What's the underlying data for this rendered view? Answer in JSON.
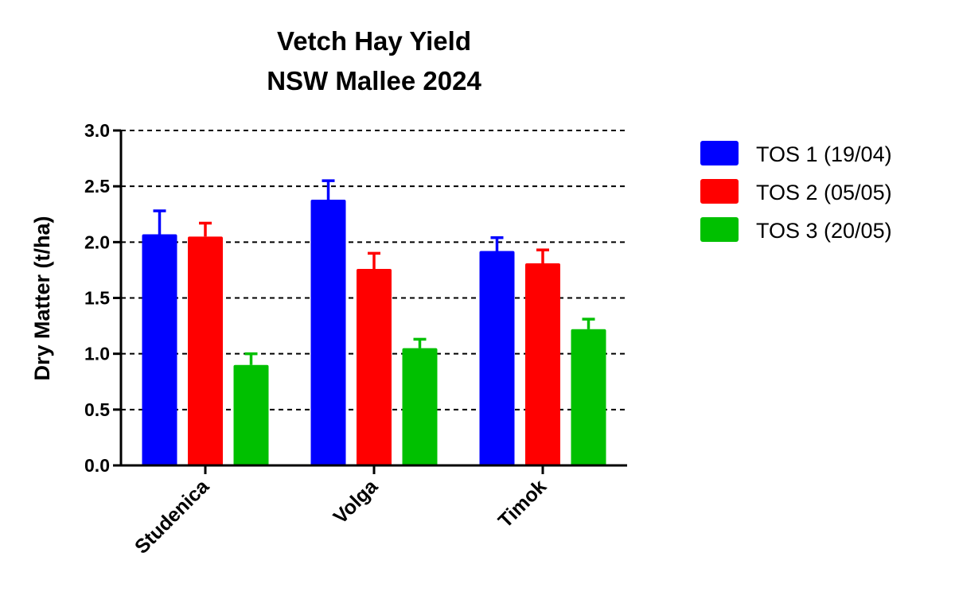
{
  "chart_data": {
    "type": "bar",
    "title": "Vetch Hay Yield",
    "subtitle": "NSW Mallee 2024",
    "xlabel": "",
    "ylabel": "Dry Matter (t/ha)",
    "ylim": [
      0,
      3.0
    ],
    "yticks": [
      "0.0",
      "0.5",
      "1.0",
      "1.5",
      "2.0",
      "2.5",
      "3.0"
    ],
    "ytick_values": [
      0,
      0.5,
      1.0,
      1.5,
      2.0,
      2.5,
      3.0
    ],
    "grid": "horizontal dashed",
    "legend_position": "right",
    "categories": [
      "Studenica",
      "Volga",
      "Timok"
    ],
    "series": [
      {
        "name": "TOS 1 (19/04)",
        "color": "#0000ff",
        "values": [
          2.07,
          2.38,
          1.92
        ],
        "errors": [
          0.21,
          0.17,
          0.12
        ]
      },
      {
        "name": "TOS 2 (05/05)",
        "color": "#ff0000",
        "values": [
          2.05,
          1.76,
          1.81
        ],
        "errors": [
          0.12,
          0.14,
          0.12
        ]
      },
      {
        "name": "TOS 3 (20/05)",
        "color": "#00c000",
        "values": [
          0.9,
          1.05,
          1.22
        ],
        "errors": [
          0.1,
          0.08,
          0.09
        ]
      }
    ]
  }
}
